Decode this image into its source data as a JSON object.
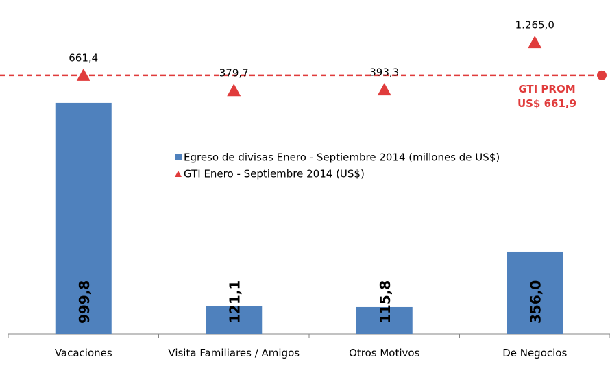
{
  "chart_data": {
    "type": "bar_line",
    "categories": [
      "Vacaciones",
      "Visita Familiares / Amigos",
      "Otros Motivos",
      "De Negocios"
    ],
    "series": [
      {
        "name": "Egreso de divisas Enero - Septiembre 2014 (millones de US$)",
        "type": "bar",
        "color": "#4f81bd",
        "values": [
          999.8,
          121.1,
          115.8,
          356.0
        ],
        "value_labels": [
          "999,8",
          "121,1",
          "115,8",
          "356,0"
        ]
      },
      {
        "name": "GTI Enero - Septiembre 2014 (US$)",
        "type": "marker",
        "axis": "y2",
        "color": "#e03c3c",
        "values": [
          661.4,
          379.7,
          393.3,
          1265.0
        ],
        "value_labels": [
          "661,4",
          "379,7",
          "393,3",
          "1.265,0"
        ]
      }
    ],
    "reference_line": {
      "axis": "y2",
      "value": 661.9,
      "color": "#e03c3c",
      "label": [
        "GTI PROM",
        "US$ 661,9"
      ]
    },
    "ylim": [
      0,
      1400
    ],
    "y2lim": [
      -4100,
      1860
    ],
    "grid": false
  }
}
